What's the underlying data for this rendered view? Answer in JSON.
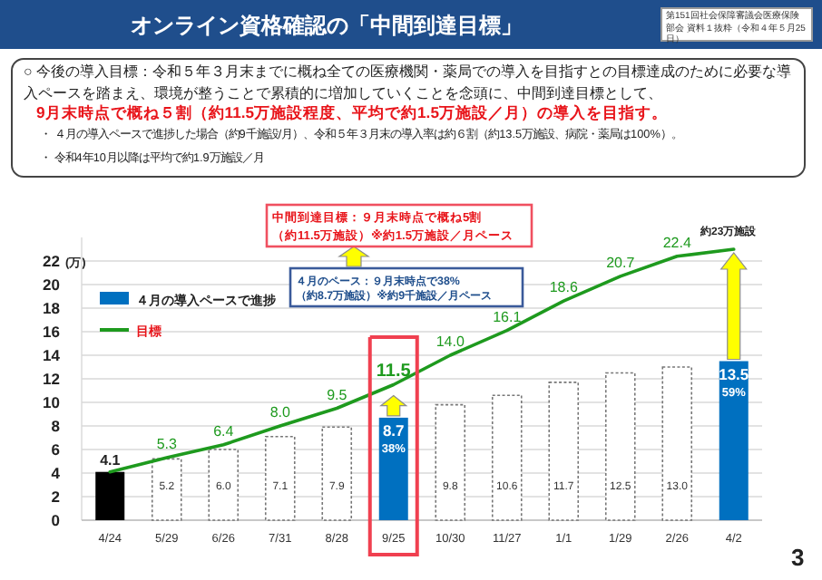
{
  "chart_data": {
    "type": "bar",
    "title": "オンライン資格確認の「中間到達目標」",
    "annotations": [
      "第151回社会保障審議会医療保険部会 資料１抜粋（令和４年５月25日）",
      "○ 今後の導入目標：令和５年３月末までに概ね全ての医療機関・薬局での導入を目指すとの目標達成のために必要な導入ペースを踏まえ、環境が整うことで累積的に増加していくことを念頭に、中間到達目標として、",
      "9月末時点で概ね５割（約11.5万施設程度、平均で約1.5万施設／月）の導入を目指す。",
      "・ ４月の導入ペースで進捗した場合（約9千施設/月）、令和５年３月末の導入率は約６割（約13.5万施設、病院・薬局は100%）。",
      "・ 令和4年10月以降は平均で約1.9万施設／月",
      "中間到達目標：９月末時点で概ね5割",
      "（約11.5万施設）※約1.5万施設／月ペース",
      "４月のペース：９月末時点で38%",
      "（約8.7万施設）※約9千施設／月ペース",
      "38%",
      "59%",
      "3"
    ],
    "ylabel": "(万)",
    "categories": [
      "4/24",
      "5/29",
      "6/26",
      "7/31",
      "8/28",
      "9/25",
      "10/30",
      "11/27",
      "1/1",
      "1/29",
      "2/26",
      "4/2"
    ],
    "ylim": [
      0,
      24
    ],
    "yticks": [
      0,
      2,
      4,
      6,
      8,
      10,
      12,
      14,
      16,
      18,
      20,
      22
    ],
    "grid": "y",
    "legend": "top left",
    "series": [
      {
        "name": "４月の導入ペースで進捗",
        "color": "#0070c0",
        "colors": [
          "#000000",
          "#ffffff",
          "#ffffff",
          "#ffffff",
          "#ffffff",
          "#0070c0",
          "#ffffff",
          "#ffffff",
          "#ffffff",
          "#ffffff",
          "#ffffff",
          "#0070c0"
        ],
        "values": [
          4.1,
          5.2,
          6.0,
          7.1,
          7.9,
          8.7,
          9.8,
          10.6,
          11.7,
          12.5,
          13.0,
          13.5
        ],
        "value_labels": [
          "4.1",
          "5.2",
          "6.0",
          "7.1",
          "7.9",
          "8.7",
          "9.8",
          "10.6",
          "11.7",
          "12.5",
          "13.0",
          "13.5"
        ]
      },
      {
        "name": "目標",
        "type": "line",
        "color": "#1e9a1e",
        "values": [
          4.1,
          5.3,
          6.4,
          8.0,
          9.5,
          11.5,
          14.0,
          16.1,
          18.6,
          20.7,
          22.4,
          23
        ],
        "value_labels": [
          null,
          "5.3",
          "6.4",
          "8.0",
          "9.5",
          "11.5",
          "14.0",
          "16.1",
          "18.6",
          "20.7",
          "22.4",
          "約23万施設"
        ]
      }
    ]
  }
}
